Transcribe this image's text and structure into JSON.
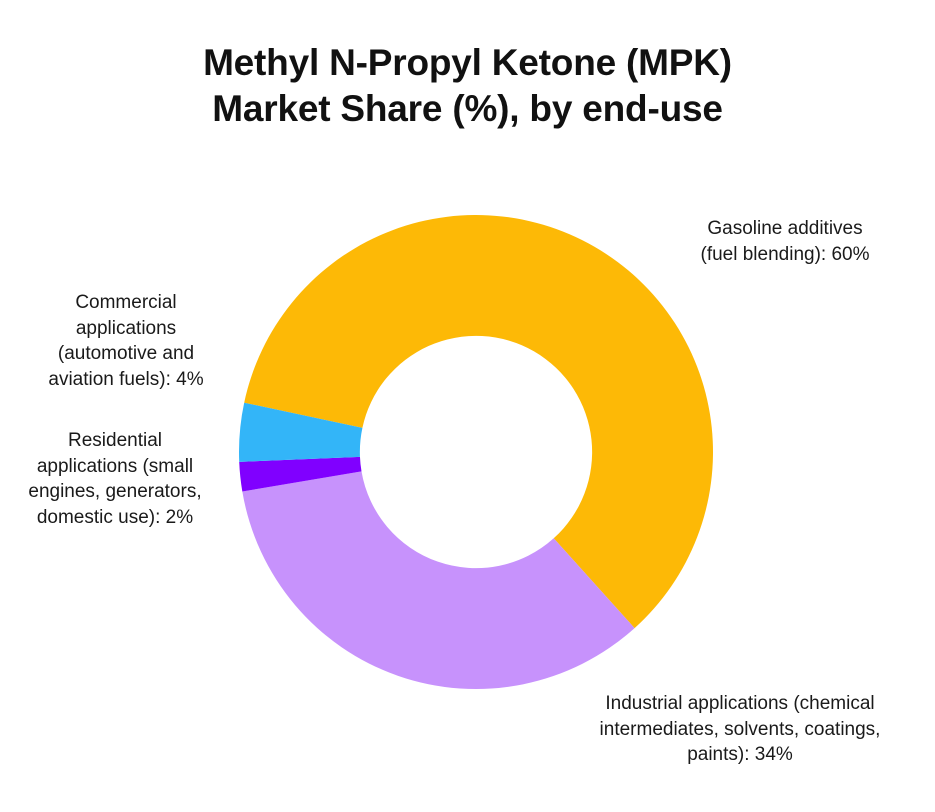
{
  "title": {
    "line1": "Methyl N-Propyl Ketone (MPK)",
    "line2": "Market Share (%), by end-use"
  },
  "labels": {
    "gasoline": [
      "Gasoline additives",
      "(fuel blending): 60%"
    ],
    "commercial": [
      "Commercial",
      "applications",
      "(automotive and",
      "aviation fuels): 4%"
    ],
    "residential": [
      "Residential",
      "applications (small",
      "engines, generators,",
      "domestic use): 2%"
    ],
    "industrial": [
      "Industrial applications (chemical",
      "intermediates, solvents, coatings,",
      "paints): 34%"
    ]
  },
  "chart_data": {
    "type": "pie",
    "subtype": "donut",
    "title": "Methyl N-Propyl Ketone (MPK) Market Share (%), by end-use",
    "categories": [
      "Gasoline additives (fuel blending)",
      "Industrial applications (chemical intermediates, solvents, coatings, paints)",
      "Residential applications (small engines, generators, domestic use)",
      "Commercial applications (automotive and aviation fuels)"
    ],
    "values": [
      60,
      34,
      2,
      4
    ],
    "unit": "%",
    "colors": [
      "#FDB906",
      "#C792FC",
      "#8000FF",
      "#33B5F8"
    ],
    "legend": "none (direct labels)",
    "start_angle_deg_clockwise_from_top": 282,
    "direction": "clockwise",
    "inner_radius_ratio": 0.49
  }
}
